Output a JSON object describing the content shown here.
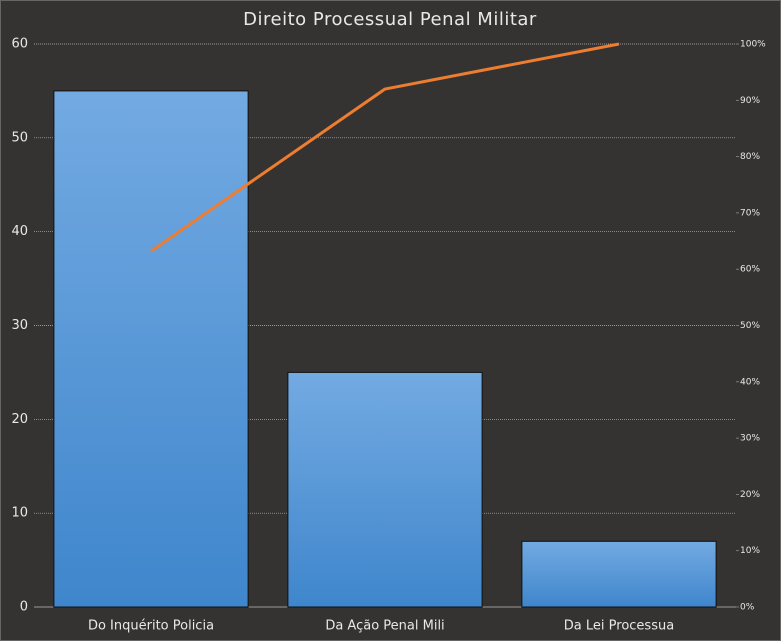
{
  "chart_data": {
    "type": "pareto",
    "title": "Direito Processual Penal Militar",
    "categories": [
      "Do Inquérito Policia",
      "Da Ação Penal Mili",
      "Da Lei Processua"
    ],
    "series": [
      {
        "values": [
          55,
          25,
          7
        ],
        "color": "#4a90d9"
      },
      {
        "values": [
          63.2,
          92,
          100
        ],
        "color": "#ed7d31",
        "axis": "y2"
      }
    ],
    "ylim": [
      0,
      60
    ],
    "yticks": [
      0,
      10,
      20,
      30,
      40,
      50,
      60
    ],
    "y2lim": [
      0,
      100
    ],
    "y2ticks": [
      {
        "value": 0,
        "label": "0%"
      },
      {
        "value": 10,
        "label": "10%"
      },
      {
        "value": 20,
        "label": "20%"
      },
      {
        "value": 30,
        "label": "30%"
      },
      {
        "value": 40,
        "label": "40%"
      },
      {
        "value": 50,
        "label": "50%"
      },
      {
        "value": 60,
        "label": "60%"
      },
      {
        "value": 70,
        "label": "70%"
      },
      {
        "value": 80,
        "label": "80%"
      },
      {
        "value": 90,
        "label": "90%"
      },
      {
        "value": 100,
        "label": "100%"
      }
    ],
    "grid": true
  }
}
